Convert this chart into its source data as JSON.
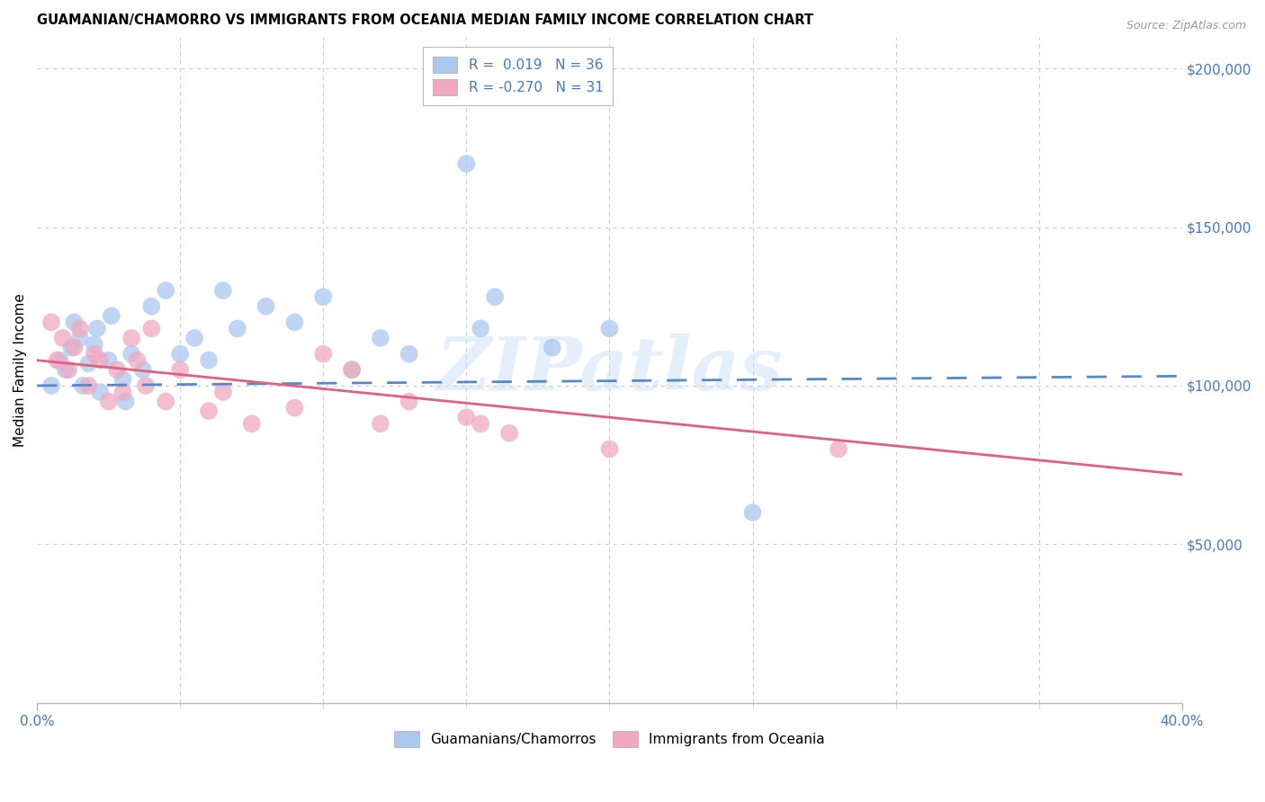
{
  "title": "GUAMANIAN/CHAMORRO VS IMMIGRANTS FROM OCEANIA MEDIAN FAMILY INCOME CORRELATION CHART",
  "source": "Source: ZipAtlas.com",
  "ylabel": "Median Family Income",
  "xlim": [
    0.0,
    0.4
  ],
  "ylim": [
    0,
    210000
  ],
  "yticks_right": [
    50000,
    100000,
    150000,
    200000
  ],
  "ytick_labels_right": [
    "$50,000",
    "$100,000",
    "$150,000",
    "$200,000"
  ],
  "series_blue": {
    "label": "Guamanians/Chamorros",
    "R": 0.019,
    "N": 36,
    "color": "#aac8f0",
    "line_color": "#5588cc",
    "x": [
      0.005,
      0.008,
      0.01,
      0.012,
      0.013,
      0.015,
      0.016,
      0.018,
      0.02,
      0.021,
      0.022,
      0.025,
      0.026,
      0.03,
      0.031,
      0.033,
      0.037,
      0.04,
      0.045,
      0.05,
      0.055,
      0.06,
      0.065,
      0.07,
      0.08,
      0.09,
      0.1,
      0.11,
      0.12,
      0.13,
      0.15,
      0.155,
      0.16,
      0.18,
      0.2,
      0.25
    ],
    "y": [
      100000,
      108000,
      105000,
      112000,
      120000,
      115000,
      100000,
      107000,
      113000,
      118000,
      98000,
      108000,
      122000,
      102000,
      95000,
      110000,
      105000,
      125000,
      130000,
      110000,
      115000,
      108000,
      130000,
      118000,
      125000,
      120000,
      128000,
      105000,
      115000,
      110000,
      170000,
      118000,
      128000,
      112000,
      118000,
      60000
    ],
    "trend_x": [
      0.0,
      0.4
    ],
    "trend_y": [
      100000,
      103000
    ]
  },
  "series_pink": {
    "label": "Immigrants from Oceania",
    "R": -0.27,
    "N": 31,
    "color": "#f0a8c0",
    "line_color": "#e06080",
    "x": [
      0.005,
      0.007,
      0.009,
      0.011,
      0.013,
      0.015,
      0.018,
      0.02,
      0.022,
      0.025,
      0.028,
      0.03,
      0.033,
      0.035,
      0.038,
      0.04,
      0.045,
      0.05,
      0.06,
      0.065,
      0.075,
      0.09,
      0.1,
      0.11,
      0.12,
      0.13,
      0.15,
      0.155,
      0.165,
      0.2,
      0.28
    ],
    "y": [
      120000,
      108000,
      115000,
      105000,
      112000,
      118000,
      100000,
      110000,
      108000,
      95000,
      105000,
      98000,
      115000,
      108000,
      100000,
      118000,
      95000,
      105000,
      92000,
      98000,
      88000,
      93000,
      110000,
      105000,
      88000,
      95000,
      90000,
      88000,
      85000,
      80000,
      80000
    ],
    "trend_x": [
      0.0,
      0.4
    ],
    "trend_y": [
      108000,
      72000
    ]
  },
  "watermark": "ZIPatlas",
  "legend_R_color": "#4477cc",
  "background_color": "#ffffff",
  "grid_color": "#cccccc"
}
